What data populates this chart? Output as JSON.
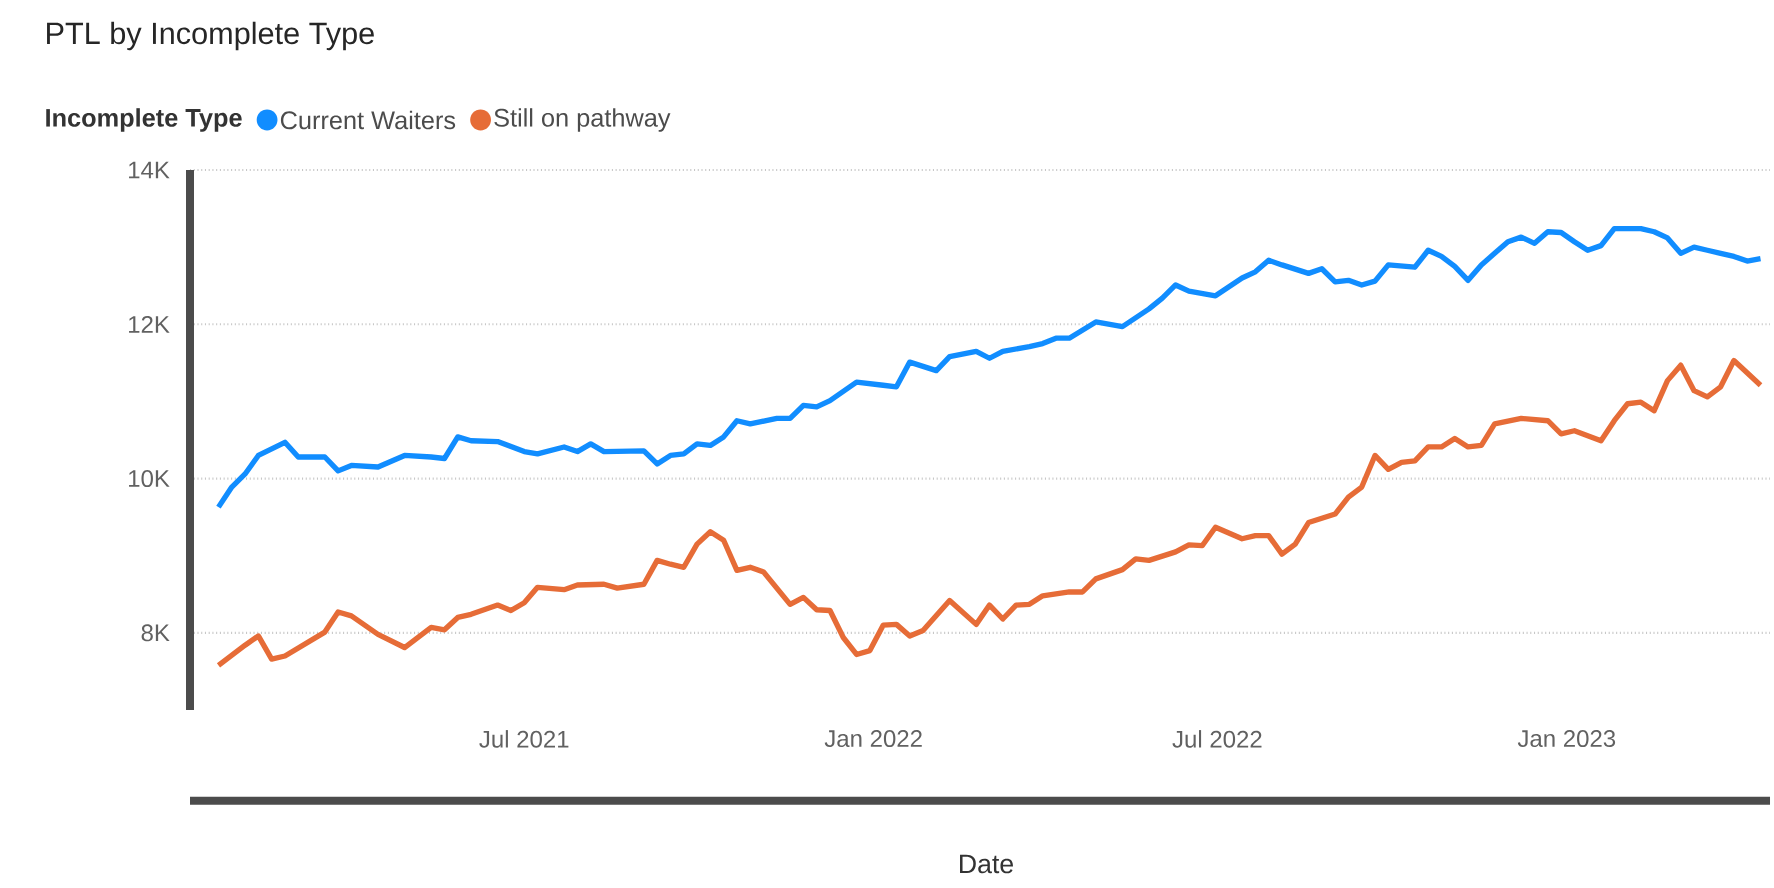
{
  "chart_data": {
    "type": "line",
    "title": "PTL by Incomplete Type",
    "xlabel": "Date",
    "legend_title": "Incomplete Type",
    "legend": "top left",
    "grid": "y",
    "xlim": [
      "2021-01-06",
      "2023-04-18"
    ],
    "xticks": [
      {
        "value": "2021-07-01",
        "label": "Jul 2021"
      },
      {
        "value": "2022-01-01",
        "label": "Jan 2022"
      },
      {
        "value": "2022-07-01",
        "label": "Jul 2022"
      },
      {
        "value": "2023-01-01",
        "label": "Jan 2023"
      }
    ],
    "ylim": [
      7000,
      14000
    ],
    "yticks": [
      {
        "value": 8000,
        "label": "8K"
      },
      {
        "value": 10000,
        "label": "10K"
      },
      {
        "value": 12000,
        "label": "12K"
      },
      {
        "value": 14000,
        "label": "14K"
      }
    ],
    "series": [
      {
        "name": "Current Waiters",
        "color": "#118dff",
        "x": [
          "2021-01-21",
          "2021-01-28",
          "2021-02-04",
          "2021-02-11",
          "2021-02-25",
          "2021-03-04",
          "2021-03-18",
          "2021-03-25",
          "2021-04-01",
          "2021-04-15",
          "2021-04-29",
          "2021-05-13",
          "2021-05-20",
          "2021-05-27",
          "2021-06-03",
          "2021-06-17",
          "2021-07-01",
          "2021-07-08",
          "2021-07-22",
          "2021-07-29",
          "2021-08-05",
          "2021-08-12",
          "2021-09-02",
          "2021-09-09",
          "2021-09-16",
          "2021-09-23",
          "2021-09-30",
          "2021-10-07",
          "2021-10-14",
          "2021-10-21",
          "2021-10-28",
          "2021-11-11",
          "2021-11-18",
          "2021-11-25",
          "2021-12-02",
          "2021-12-09",
          "2021-12-23",
          "2022-01-06",
          "2022-01-13",
          "2022-01-20",
          "2022-02-03",
          "2022-02-10",
          "2022-02-24",
          "2022-03-03",
          "2022-03-10",
          "2022-03-24",
          "2022-03-31",
          "2022-04-07",
          "2022-04-14",
          "2022-04-28",
          "2022-05-12",
          "2022-05-26",
          "2022-06-02",
          "2022-06-09",
          "2022-06-16",
          "2022-06-30",
          "2022-07-14",
          "2022-07-21",
          "2022-07-28",
          "2022-08-04",
          "2022-08-18",
          "2022-08-25",
          "2022-09-01",
          "2022-09-08",
          "2022-09-15",
          "2022-09-22",
          "2022-09-29",
          "2022-10-13",
          "2022-10-20",
          "2022-10-27",
          "2022-11-03",
          "2022-11-10",
          "2022-11-17",
          "2022-11-24",
          "2022-12-01",
          "2022-12-08",
          "2022-12-15",
          "2022-12-22",
          "2022-12-29",
          "2023-01-05",
          "2023-01-12",
          "2023-01-19",
          "2023-01-26",
          "2023-02-09",
          "2023-02-16",
          "2023-02-23",
          "2023-03-02",
          "2023-03-09",
          "2023-03-16",
          "2023-03-23",
          "2023-03-30",
          "2023-04-06",
          "2023-04-13"
        ],
        "values": [
          9630,
          9890,
          10060,
          10300,
          10470,
          10280,
          10280,
          10100,
          10170,
          10150,
          10300,
          10280,
          10260,
          10540,
          10490,
          10480,
          10350,
          10320,
          10410,
          10350,
          10450,
          10350,
          10360,
          10190,
          10300,
          10320,
          10450,
          10430,
          10540,
          10750,
          10710,
          10780,
          10780,
          10950,
          10930,
          11010,
          11250,
          11210,
          11190,
          11510,
          11400,
          11580,
          11650,
          11560,
          11650,
          11710,
          11750,
          11820,
          11820,
          12030,
          11970,
          12200,
          12340,
          12510,
          12430,
          12370,
          12600,
          12680,
          12830,
          12770,
          12660,
          12720,
          12550,
          12570,
          12510,
          12560,
          12770,
          12740,
          12960,
          12880,
          12750,
          12570,
          12770,
          12920,
          13070,
          13130,
          13050,
          13200,
          13190,
          13070,
          12960,
          13020,
          13240,
          13240,
          13200,
          13120,
          12920,
          13000,
          12960,
          12920,
          12880,
          12820,
          12850
        ]
      },
      {
        "name": "Still on pathway",
        "color": "#e66c37",
        "x": [
          "2021-01-21",
          "2021-02-04",
          "2021-02-11",
          "2021-02-18",
          "2021-02-25",
          "2021-03-18",
          "2021-03-25",
          "2021-04-01",
          "2021-04-15",
          "2021-04-29",
          "2021-05-13",
          "2021-05-20",
          "2021-05-27",
          "2021-06-03",
          "2021-06-17",
          "2021-06-24",
          "2021-07-01",
          "2021-07-08",
          "2021-07-22",
          "2021-07-29",
          "2021-08-12",
          "2021-08-19",
          "2021-09-02",
          "2021-09-09",
          "2021-09-16",
          "2021-09-23",
          "2021-09-30",
          "2021-10-07",
          "2021-10-14",
          "2021-10-21",
          "2021-10-28",
          "2021-11-04",
          "2021-11-18",
          "2021-11-25",
          "2021-12-02",
          "2021-12-09",
          "2021-12-16",
          "2021-12-23",
          "2021-12-30",
          "2022-01-06",
          "2022-01-13",
          "2022-01-20",
          "2022-01-27",
          "2022-02-10",
          "2022-02-24",
          "2022-03-03",
          "2022-03-10",
          "2022-03-17",
          "2022-03-24",
          "2022-03-31",
          "2022-04-14",
          "2022-04-21",
          "2022-04-28",
          "2022-05-12",
          "2022-05-19",
          "2022-05-26",
          "2022-06-09",
          "2022-06-16",
          "2022-06-23",
          "2022-06-30",
          "2022-07-14",
          "2022-07-21",
          "2022-07-28",
          "2022-08-04",
          "2022-08-11",
          "2022-08-18",
          "2022-09-01",
          "2022-09-08",
          "2022-09-15",
          "2022-09-22",
          "2022-09-29",
          "2022-10-06",
          "2022-10-13",
          "2022-10-20",
          "2022-10-27",
          "2022-11-03",
          "2022-11-10",
          "2022-11-17",
          "2022-11-24",
          "2022-12-08",
          "2022-12-22",
          "2022-12-29",
          "2023-01-05",
          "2023-01-19",
          "2023-01-26",
          "2023-02-02",
          "2023-02-09",
          "2023-02-16",
          "2023-02-23",
          "2023-03-02",
          "2023-03-09",
          "2023-03-16",
          "2023-03-23",
          "2023-03-30",
          "2023-04-13"
        ],
        "values": [
          7580,
          7840,
          7960,
          7660,
          7700,
          8010,
          8270,
          8220,
          7980,
          7810,
          8070,
          8040,
          8200,
          8240,
          8360,
          8290,
          8390,
          8590,
          8560,
          8620,
          8630,
          8580,
          8630,
          8940,
          8890,
          8850,
          9150,
          9310,
          9200,
          8810,
          8850,
          8790,
          8370,
          8460,
          8300,
          8290,
          7940,
          7720,
          7770,
          8100,
          8110,
          7960,
          8030,
          8420,
          8110,
          8360,
          8180,
          8360,
          8370,
          8480,
          8530,
          8530,
          8700,
          8820,
          8960,
          8940,
          9050,
          9140,
          9130,
          9370,
          9220,
          9260,
          9260,
          9020,
          9150,
          9430,
          9540,
          9760,
          9890,
          10300,
          10120,
          10210,
          10230,
          10410,
          10410,
          10520,
          10410,
          10430,
          10710,
          10780,
          10750,
          10580,
          10620,
          10490,
          10750,
          10970,
          10990,
          10880,
          11270,
          11470,
          11140,
          11060,
          11190,
          11530,
          11210
        ]
      }
    ]
  }
}
